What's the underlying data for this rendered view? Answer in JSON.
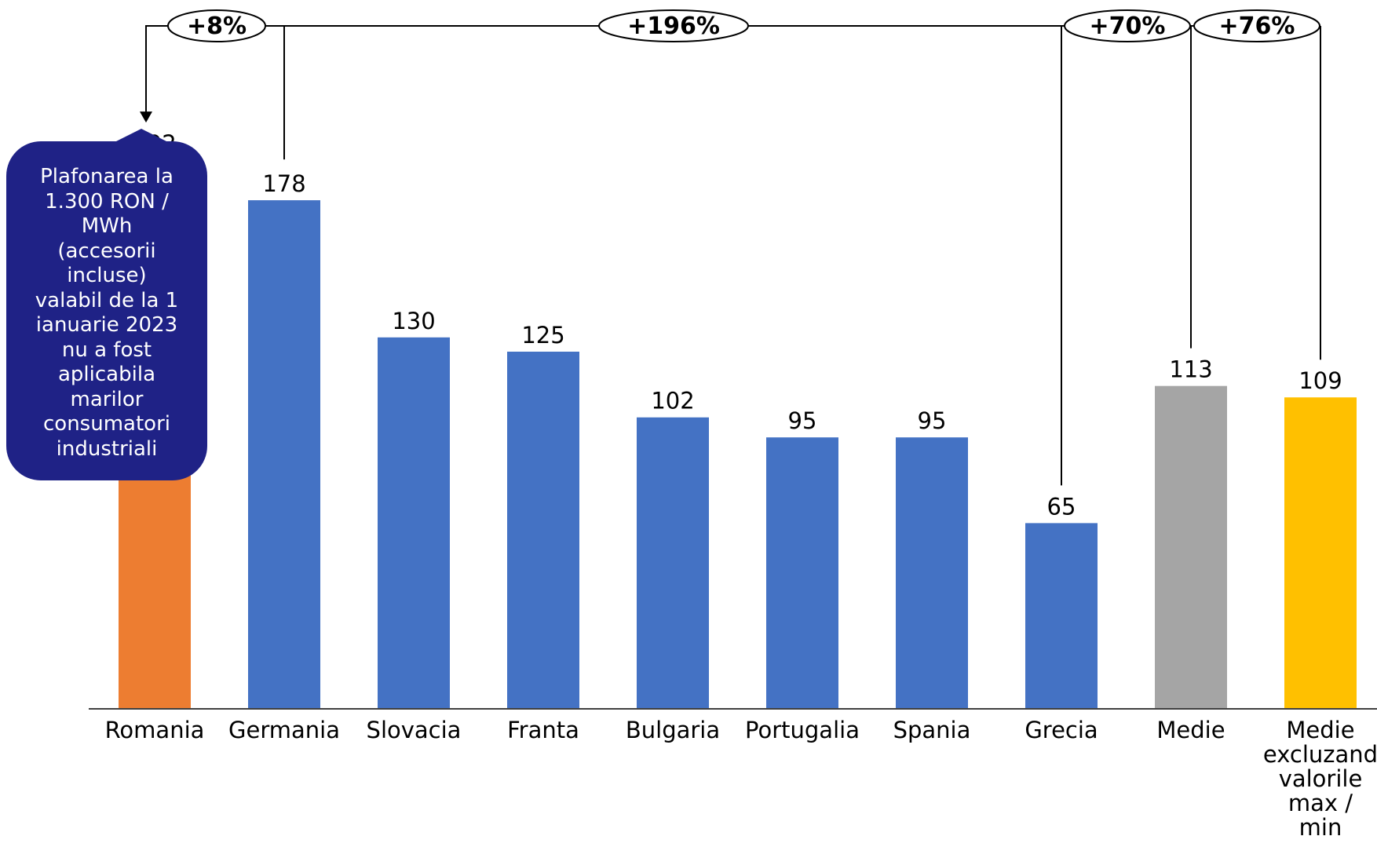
{
  "chart_data": {
    "type": "bar",
    "categories": [
      "Romania",
      "Germania",
      "Slovacia",
      "Franta",
      "Bulgaria",
      "Portugalia",
      "Spania",
      "Grecia",
      "Medie",
      "Medie\nexcluzand\nvalorile\nmax /\nmin"
    ],
    "values": [
      192,
      178,
      130,
      125,
      102,
      95,
      95,
      65,
      113,
      109
    ],
    "bar_colors": [
      "#ed7d31",
      "#4472c4",
      "#4472c4",
      "#4472c4",
      "#4472c4",
      "#4472c4",
      "#4472c4",
      "#4472c4",
      "#a5a5a5",
      "#ffc000"
    ],
    "title": "",
    "xlabel": "",
    "ylabel": "",
    "ylim": [
      0,
      200
    ],
    "grid": false,
    "annotations": [
      {
        "label": "+8%",
        "from": "Germania",
        "to": "Romania"
      },
      {
        "label": "+196%",
        "from": "Romania",
        "to": "Grecia"
      },
      {
        "label": "+70%",
        "from": "Romania",
        "to": "Medie"
      },
      {
        "label": "+76%",
        "from": "Romania",
        "to": "Medie\nexcluzand\nvalorile\nmax /\nmin"
      }
    ],
    "callout": {
      "text": "Plafonarea la\n1.300 RON /\nMWh\n(accesorii\nincluse)\nvalabil de la 1\nianuarie 2023\nnu a fost\naplicabila\nmarilor\nconsumatori\nindustriali",
      "color": "#1f2286"
    }
  }
}
